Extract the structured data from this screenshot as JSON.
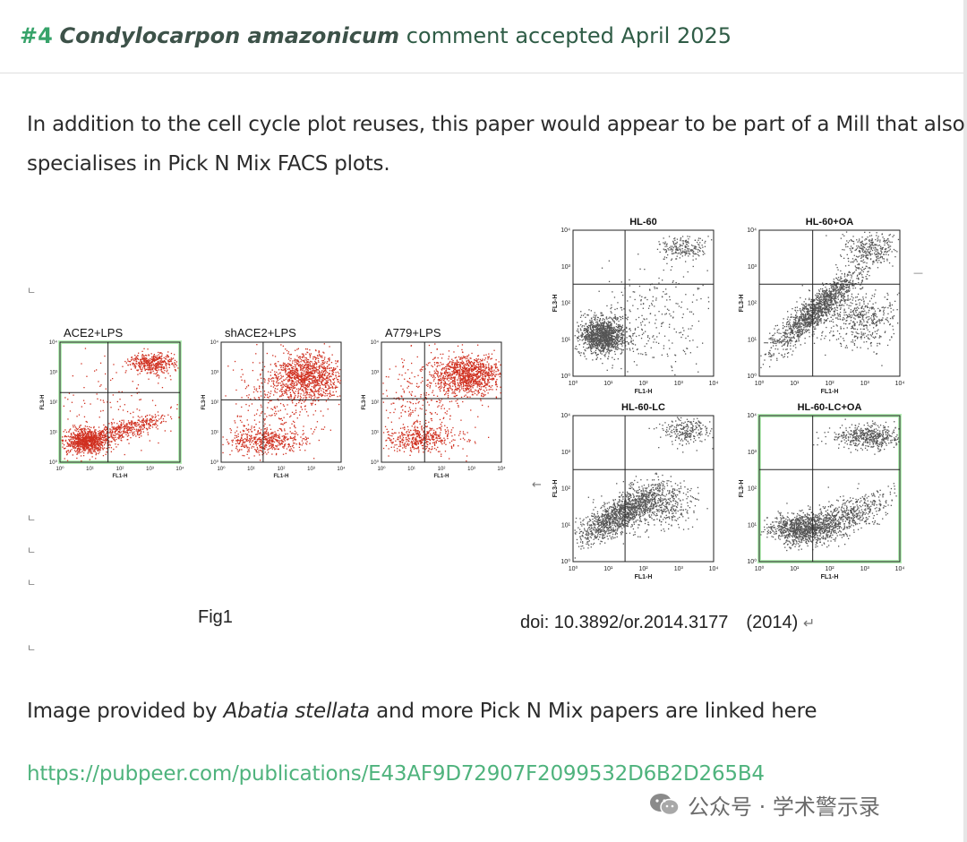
{
  "header": {
    "number": "#4",
    "species": "Condylocarpon amazonicum",
    "status": "comment accepted April 2025"
  },
  "paragraph1": {
    "line1": "In addition to the cell cycle plot reuses, this paper would appear to be part of a Mill that also",
    "line2": "specialises in Pick N Mix FACS plots."
  },
  "figure": {
    "left_panels": [
      {
        "title": "ACE2+LPS",
        "color": "#d03020"
      },
      {
        "title": "shACE2+LPS",
        "color": "#d03020"
      },
      {
        "title": "A779+LPS",
        "color": "#d03020"
      }
    ],
    "right_panels": [
      {
        "title": "HL-60",
        "color": "#555555"
      },
      {
        "title": "HL-60+OA",
        "color": "#555555"
      },
      {
        "title": "HL-60-LC",
        "color": "#555555"
      },
      {
        "title": "HL-60-LC+OA",
        "color": "#555555"
      }
    ],
    "xlabel": "FL1-H",
    "ylabel": "FL3-H",
    "caption_left": "Fig1",
    "caption_right": "doi: 10.3892/or.2014.3177　(2014)",
    "return_mark": "↵"
  },
  "paragraph2": {
    "before": "Image provided by ",
    "species": "Abatia stellata",
    "after": " and more Pick N Mix papers are linked here"
  },
  "link": {
    "url": "https://pubpeer.com/publications/E43AF9D72907F2099532D6B2D265B4"
  },
  "watermark": {
    "text": "公众号 · 学术警示录"
  },
  "colors": {
    "accent": "#37a36a",
    "link": "#4fb37d",
    "dot_red": "#d03020",
    "dot_gray": "#555555"
  }
}
